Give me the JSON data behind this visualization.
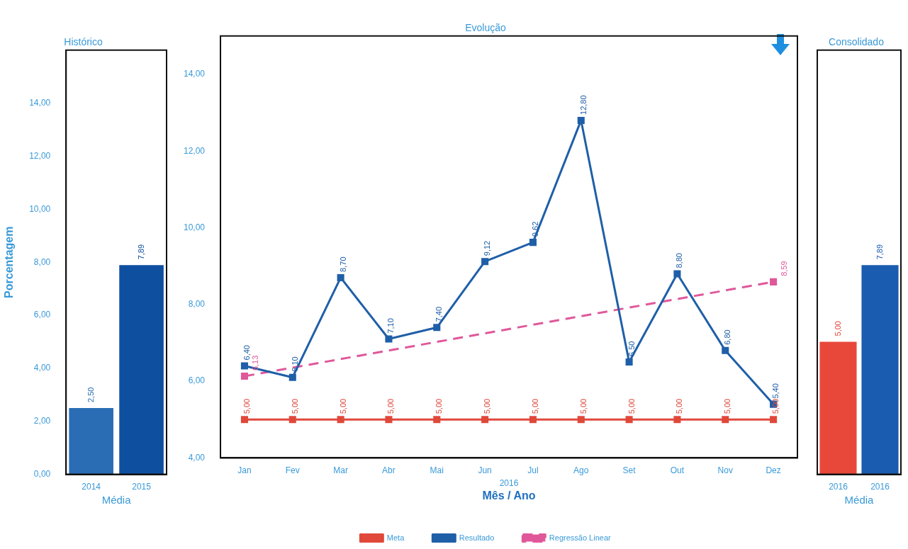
{
  "chart_data": [
    {
      "type": "bar",
      "title": "Histórico",
      "ylabel": "Porcentagem",
      "xlabel": "Média",
      "categories": [
        "2014",
        "2015"
      ],
      "values": [
        2.5,
        7.89
      ],
      "colors": [
        "#2a6db5",
        "#0f4fa0"
      ],
      "value_labels": [
        "2,50",
        "7,89"
      ],
      "ylim": [
        0,
        16
      ],
      "yticks": [
        {
          "value": 0,
          "label": "0,00"
        },
        {
          "value": 2,
          "label": "2,00"
        },
        {
          "value": 4,
          "label": "4,00"
        },
        {
          "value": 6,
          "label": "6,00"
        },
        {
          "value": 8,
          "label": "8,00"
        },
        {
          "value": 10,
          "label": "10,00"
        },
        {
          "value": 12,
          "label": "12,00"
        },
        {
          "value": 14,
          "label": "14,00"
        }
      ],
      "grid": false
    },
    {
      "type": "line",
      "title": "Evolução",
      "xlabel": "Mês / Ano",
      "annotations": [
        "2016"
      ],
      "categories": [
        "Jan",
        "Fev",
        "Mar",
        "Abr",
        "Mai",
        "Jun",
        "Jul",
        "Ago",
        "Set",
        "Out",
        "Nov",
        "Dez"
      ],
      "series": [
        {
          "name": "Meta",
          "color": "#e0483a",
          "values": [
            5,
            5,
            5,
            5,
            5,
            5,
            5,
            5,
            5,
            5,
            5,
            5
          ],
          "value_labels": [
            "5,00",
            "5,00",
            "5,00",
            "5,00",
            "5,00",
            "5,00",
            "5,00",
            "5,00",
            "5,00",
            "5,00",
            "5,00",
            "5,00"
          ]
        },
        {
          "name": "Resultado",
          "color": "#1f5fa8",
          "values": [
            6.4,
            6.1,
            8.7,
            7.1,
            7.4,
            9.12,
            9.62,
            12.8,
            6.5,
            8.8,
            6.8,
            5.4
          ],
          "value_labels": [
            "6,40",
            "6,10",
            "8,70",
            "7,10",
            "7,40",
            "9,12",
            "9,62",
            "12,80",
            "6,50",
            "8,80",
            "6,80",
            "5,40"
          ]
        },
        {
          "name": "Regressão Linear",
          "color": "#e0589a",
          "line_style": "dashed",
          "values": [
            6.13,
            null,
            null,
            null,
            null,
            null,
            null,
            null,
            null,
            null,
            null,
            8.59
          ],
          "value_labels": [
            "6,13",
            null,
            null,
            null,
            null,
            null,
            null,
            null,
            null,
            null,
            null,
            "8,59"
          ]
        }
      ],
      "ylim": [
        4,
        15
      ],
      "yticks": [
        {
          "value": 4,
          "label": "4,00"
        },
        {
          "value": 6,
          "label": "6,00"
        },
        {
          "value": 8,
          "label": "8,00"
        },
        {
          "value": 10,
          "label": "10,00"
        },
        {
          "value": 12,
          "label": "12,00"
        },
        {
          "value": 14,
          "label": "14,00"
        }
      ],
      "marker": "square",
      "legend": "bottom",
      "grid": false
    },
    {
      "type": "bar",
      "title": "Consolidado",
      "xlabel": "Média",
      "categories": [
        "2016",
        "2016"
      ],
      "values": [
        5,
        7.89
      ],
      "colors": [
        "#e8483a",
        "#1a5cb0"
      ],
      "value_labels": [
        "5,00",
        "7,89"
      ],
      "ylim": [
        0,
        16
      ],
      "tick_labels": "x",
      "grid": false
    }
  ]
}
